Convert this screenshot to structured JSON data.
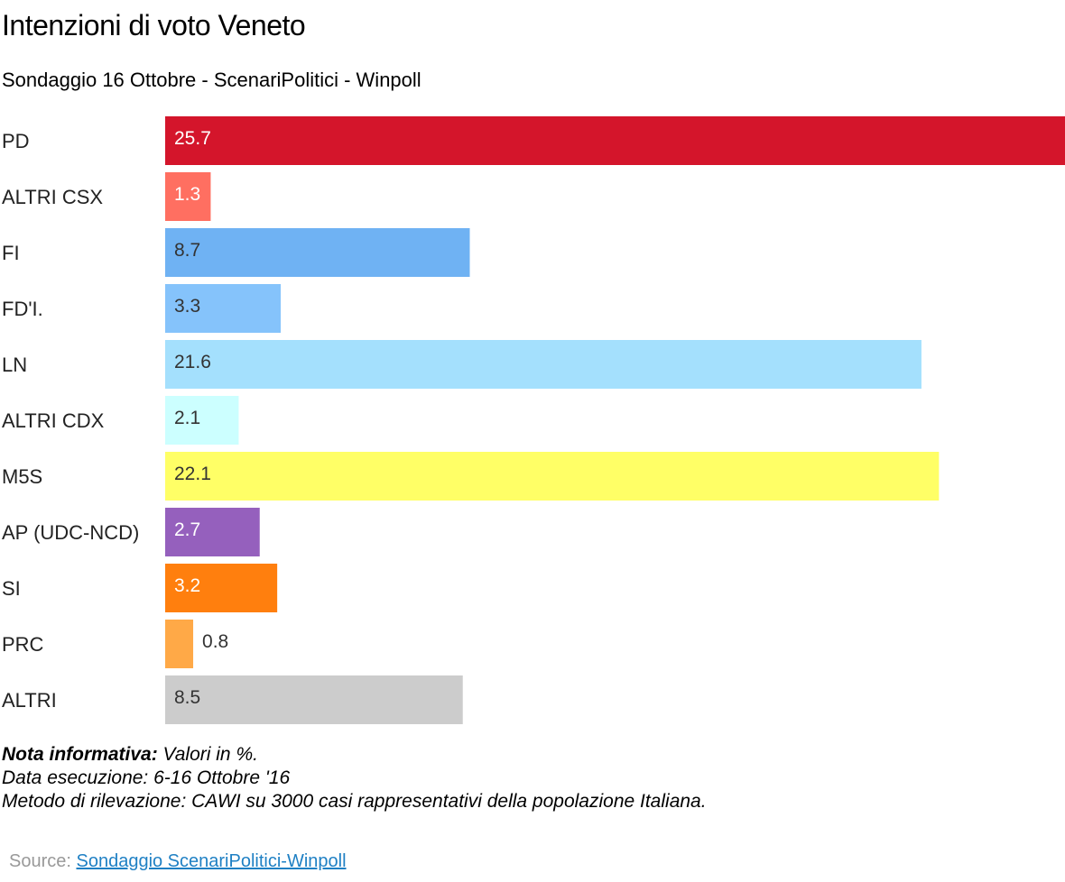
{
  "header": {
    "title": "Intenzioni di voto Veneto",
    "subtitle": "Sondaggio 16 Ottobre - ScenariPolitici - Winpoll"
  },
  "chart_data": {
    "type": "bar",
    "orientation": "horizontal",
    "categories": [
      "PD",
      "ALTRI CSX",
      "FI",
      "FD'I.",
      "LN",
      "ALTRI CDX",
      "M5S",
      "AP (UDC-NCD)",
      "SI",
      "PRC",
      "ALTRI"
    ],
    "values": [
      25.7,
      1.3,
      8.7,
      3.3,
      21.6,
      2.1,
      22.1,
      2.7,
      3.2,
      0.8,
      8.5
    ],
    "value_labels": [
      "25.7",
      "1.3",
      "8.7",
      "3.3",
      "21.6",
      "2.1",
      "22.1",
      "2.7",
      "3.2",
      "0.8",
      "8.5"
    ],
    "colors": [
      "#d4152b",
      "#ff6f61",
      "#6fb2f3",
      "#85c3fb",
      "#a4e0fd",
      "#ccffff",
      "#ffff66",
      "#9560bd",
      "#ff7f0e",
      "#ffa947",
      "#cccccc"
    ],
    "label_colors": [
      "#ffffff",
      "#ffffff",
      "#333333",
      "#333333",
      "#333333",
      "#333333",
      "#333333",
      "#ffffff",
      "#ffffff",
      "#333333",
      "#333333"
    ],
    "xlim": [
      0,
      25.7
    ],
    "grid": false,
    "legend": "none"
  },
  "notes": {
    "label": "Nota informativa:",
    "line1": " Valori in %.",
    "line2": "Data esecuzione: 6-16  Ottobre '16",
    "line3": "Metodo di rilevazione: CAWI su 3000 casi rappresentativi della popolazione Italiana."
  },
  "source": {
    "label": "Source: ",
    "link_text": "Sondaggio ScenariPolitici-Winpoll"
  }
}
